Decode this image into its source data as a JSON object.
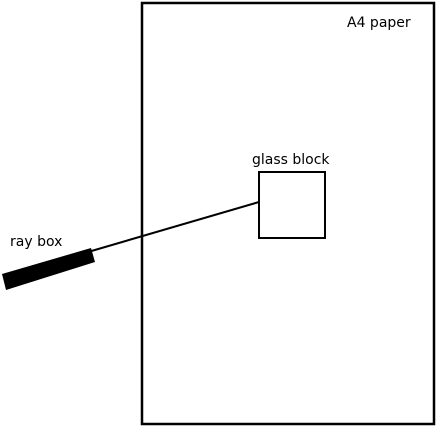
{
  "labels": {
    "paper": "A4 paper",
    "block": "glass block",
    "ray_box": "ray box"
  },
  "colors": {
    "stroke": "#000000",
    "background": "#ffffff"
  }
}
